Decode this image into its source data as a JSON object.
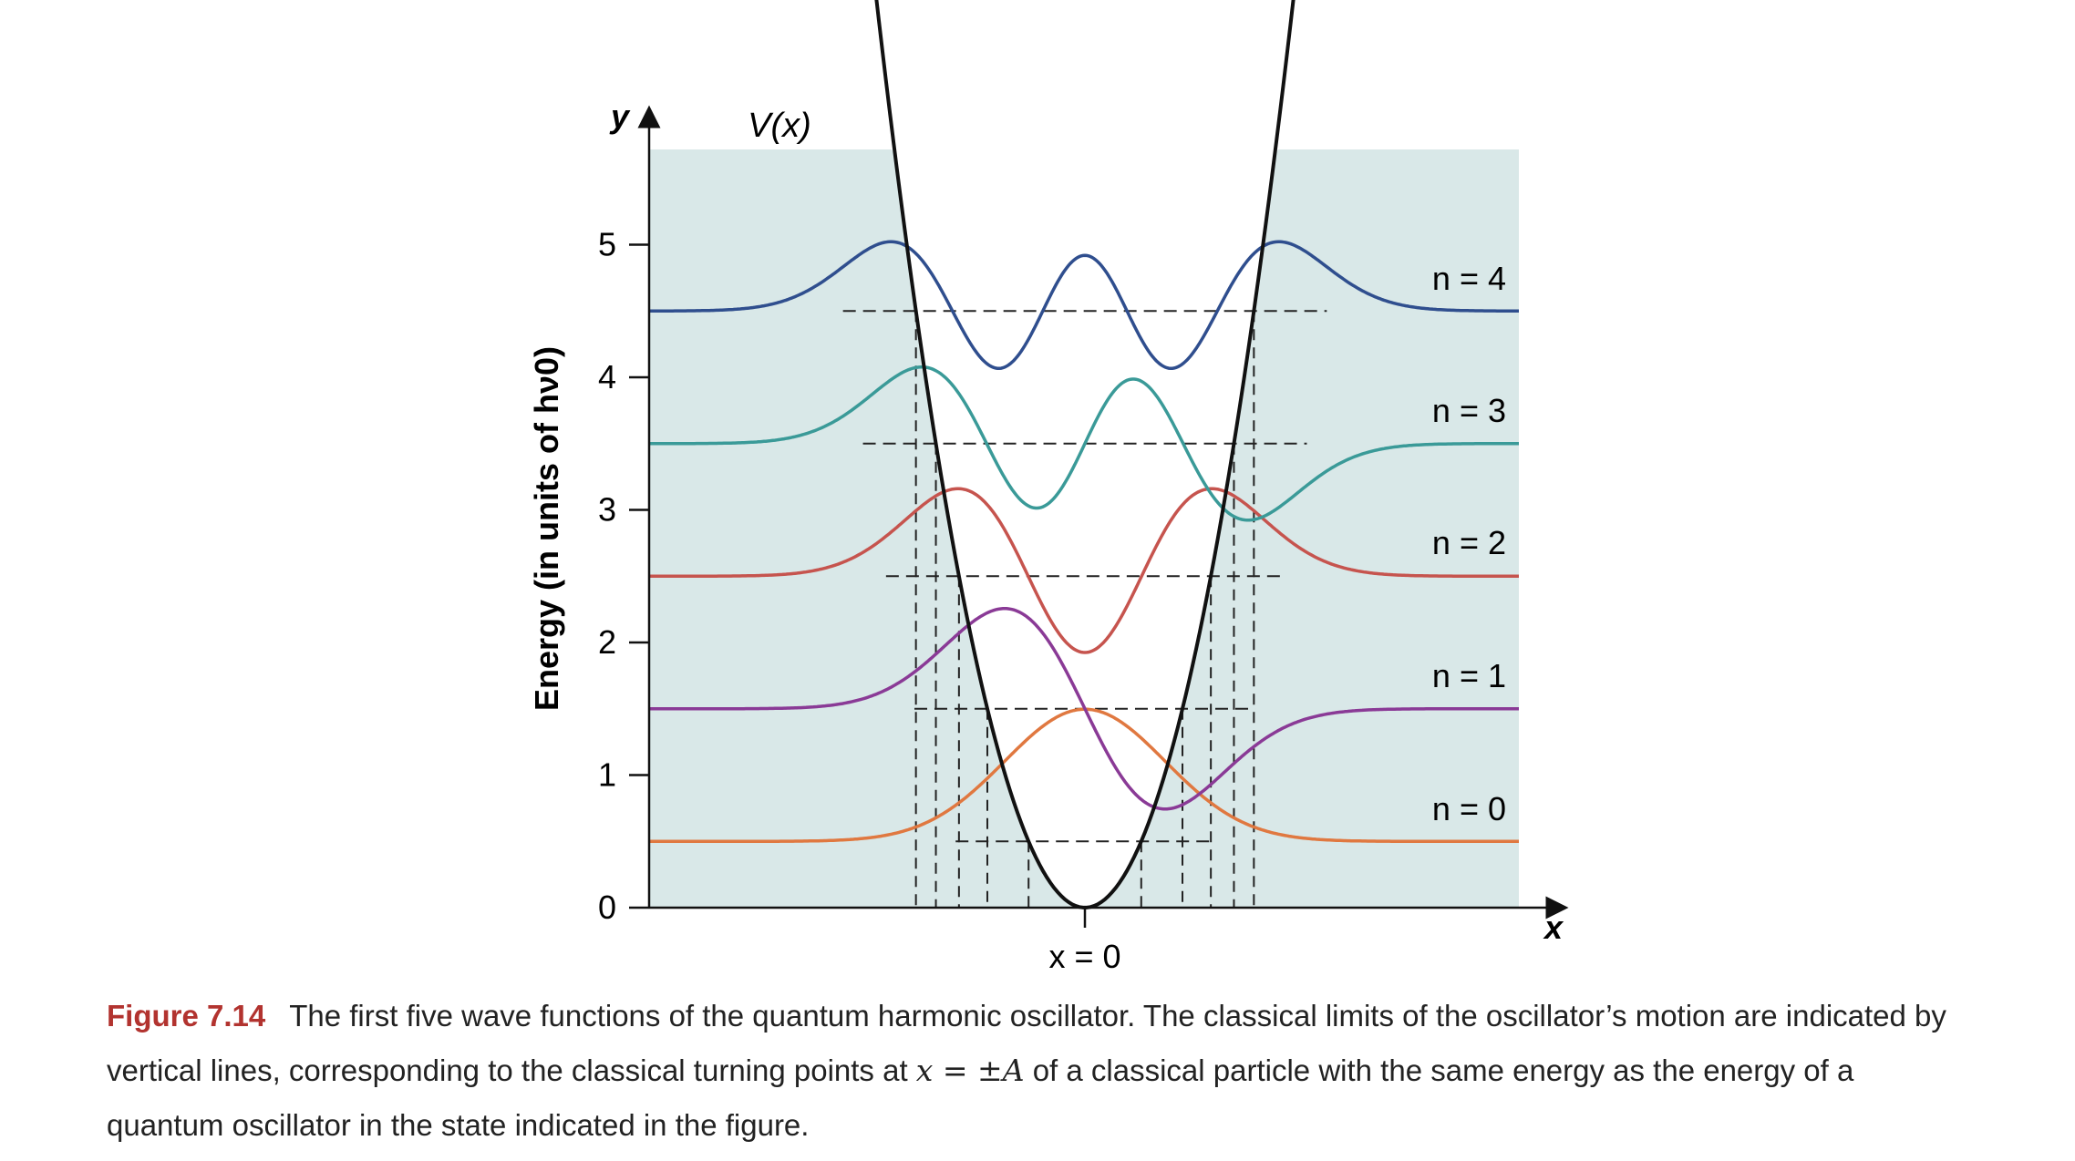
{
  "figure": {
    "y_axis_symbol": "y",
    "x_axis_symbol": "x",
    "potential_label": "V(x)",
    "origin_label": "x = 0",
    "y_axis_title": "Energy (in units of hν0)",
    "y_ticks": [
      "0",
      "1",
      "2",
      "3",
      "4",
      "5"
    ],
    "level_labels": [
      "n = 0",
      "n = 1",
      "n = 2",
      "n = 3",
      "n = 4"
    ],
    "colors": {
      "background_band": "#d9e8e8",
      "n0": "#e07840",
      "n1": "#8a3a96",
      "n2": "#c6544e",
      "n3": "#3a9a98",
      "n4": "#2f4e8e",
      "potential": "#111111",
      "dashed": "#222222"
    }
  },
  "chart_data": {
    "type": "line",
    "ylabel": "Energy (in units of hν0)",
    "ylim": [
      0,
      5
    ],
    "energy_levels": [
      0.5,
      1.5,
      2.5,
      3.5,
      4.5
    ],
    "series": [
      {
        "name": "n = 0",
        "baseline": 0.5
      },
      {
        "name": "n = 1",
        "baseline": 1.5
      },
      {
        "name": "n = 2",
        "baseline": 2.5
      },
      {
        "name": "n = 3",
        "baseline": 3.5
      },
      {
        "name": "n = 4",
        "baseline": 4.5
      }
    ]
  },
  "caption": {
    "label": "Figure 7.14",
    "text_1": "The first five wave functions of the quantum harmonic oscillator. The classical limits of the oscillator’s motion are indicated by vertical lines, corresponding to the classical turning points at",
    "math": "x = ±A",
    "text_2": "of a classical particle with the same energy as the energy of a quantum oscillator in the state indicated in the figure."
  }
}
